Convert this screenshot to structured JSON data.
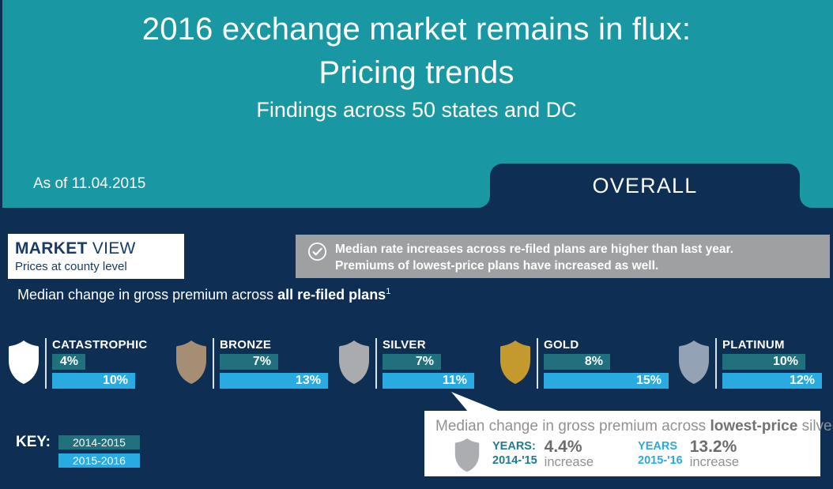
{
  "header": {
    "title_line1": "2016 exchange market remains in flux:",
    "title_line2": "Pricing trends",
    "subtitle": "Findings across 50 states and DC",
    "as_of": "As of 11.04.2015",
    "tab_label": "OVERALL"
  },
  "market_view": {
    "title_bold": "MARKET",
    "title_regular": " VIEW",
    "subtitle": "Prices at county level"
  },
  "banner": {
    "icon": "check-circle-icon",
    "line1": "Median rate increases across re-filed plans are higher than last year.",
    "line2": "Premiums of lowest-price plans have increased as well."
  },
  "lead": {
    "prefix": "Median change in gross premium across ",
    "bold": "all re-filed plans",
    "sup": "1"
  },
  "key": {
    "label": "KEY:"
  },
  "callout": {
    "text_prefix": "Median change in gross premium across ",
    "text_bold": "lowest-price",
    "text_suffix": " silver plans",
    "shield_icon": "silver-shield-icon",
    "shield_color": "#ABADB0",
    "stats": [
      {
        "years_label": "YEARS:",
        "years_range": "2014-'15",
        "value": "4.4%",
        "unit": "increase",
        "accent": "#1E7B90"
      },
      {
        "years_label": "YEARS",
        "years_range": "2015-'16",
        "value": "13.2%",
        "unit": "increase",
        "accent": "#2AA9E0"
      }
    ]
  },
  "chart_data": {
    "type": "bar",
    "title": "Median change in gross premium across all re-filed plans",
    "categories": [
      "CATASTROPHIC",
      "BRONZE",
      "SILVER",
      "GOLD",
      "PLATINUM"
    ],
    "series": [
      {
        "name": "2014-2015",
        "color": "#20707E",
        "values": [
          4,
          7,
          7,
          8,
          10
        ]
      },
      {
        "name": "2015-2016",
        "color": "#29AAE1",
        "values": [
          10,
          13,
          11,
          15,
          12
        ]
      }
    ],
    "unit": "%",
    "value_labels": [
      [
        "4%",
        "7%",
        "7%",
        "8%",
        "10%"
      ],
      [
        "10%",
        "13%",
        "11%",
        "15%",
        "12%"
      ]
    ],
    "legend_position": "bottom-left",
    "grid": false,
    "shield_colors": {
      "CATASTROPHIC": "#FFFFFF",
      "BRONZE": "#A68E74",
      "SILVER": "#A9ABAE",
      "GOLD": "#C4992E",
      "PLATINUM": "#93A2B4"
    }
  },
  "colors": {
    "header_teal": "#1998A4",
    "background_navy": "#0E2E54",
    "banner_gray": "#9EA0A2",
    "bar_teal": "#20707E",
    "bar_blue": "#29AAE1",
    "divider": "#D9E4EC",
    "text_white": "#FFFFFF",
    "market_view_navy": "#1A3A66",
    "callout_gray_text": "#8F9193"
  }
}
